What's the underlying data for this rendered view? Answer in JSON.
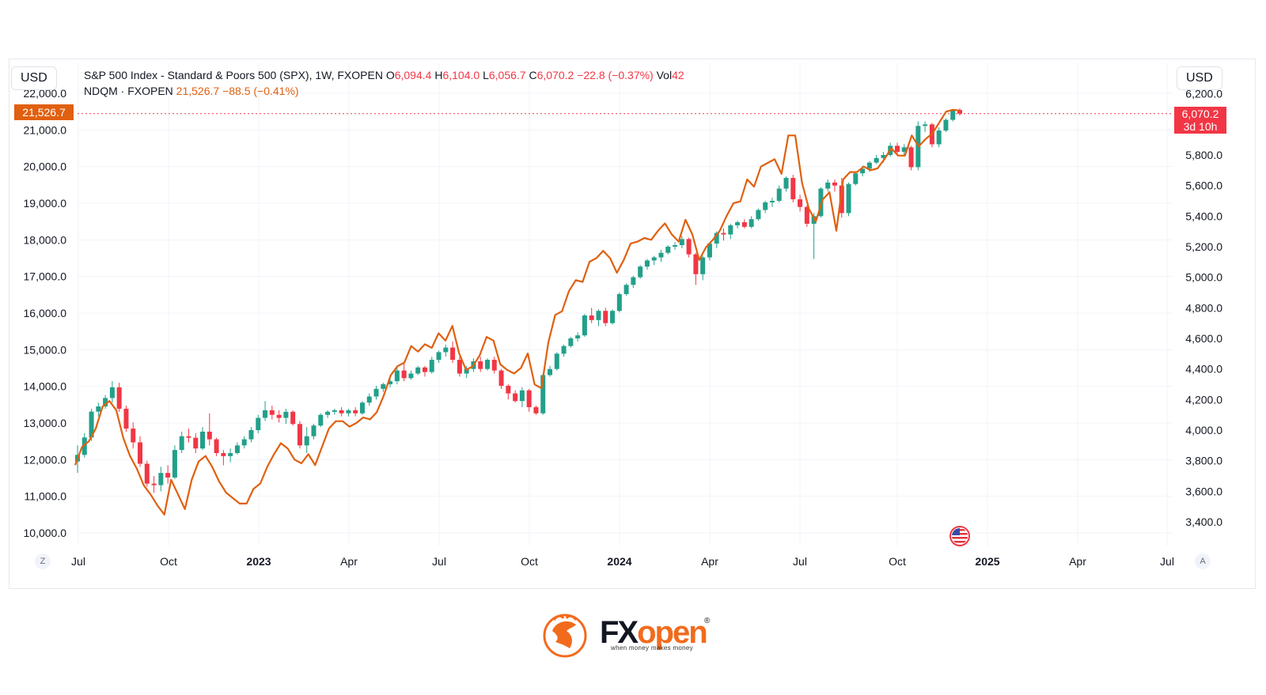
{
  "header": {
    "left_currency": "USD",
    "right_currency": "USD",
    "symbol1_name": "S&P 500 Index - Standard & Poors 500 (SPX), 1W, FXOPEN",
    "o_label": "O",
    "o_value": "6,094.4",
    "h_label": "H",
    "h_value": "6,104.0",
    "l_label": "L",
    "l_value": "6,056.7",
    "c_label": "C",
    "c_value": "6,070.2",
    "change": "−22.8 (−0.37%)",
    "vol_label": "Vol",
    "vol_value": "42",
    "symbol2_name": "NDQM · FXOPEN",
    "symbol2_value": "21,526.7",
    "symbol2_change": "−88.5 (−0.41%)"
  },
  "price_tags": {
    "left": "21,526.7",
    "right_price": "6,070.2",
    "right_countdown": "3d 10h"
  },
  "buttons": {
    "left": "Z",
    "right": "A"
  },
  "brand": {
    "fx": "FX",
    "open": "open",
    "reg": "®",
    "tagline": "when money makes money"
  },
  "chart_data": {
    "type": "candlestick+line",
    "left_axis": {
      "series": "NDQM",
      "ticks": [
        "22,000.0",
        "21,000.0",
        "20,000.0",
        "19,000.0",
        "18,000.0",
        "17,000.0",
        "16,000.0",
        "15,000.0",
        "14,000.0",
        "13,000.0",
        "12,000.0",
        "11,000.0",
        "10,000.0"
      ],
      "range": [
        9840,
        22180
      ]
    },
    "right_axis": {
      "series": "SPX",
      "ticks": [
        "6,200.0",
        "5,800.0",
        "5,600.0",
        "5,400.0",
        "5,200.0",
        "5,000.0",
        "4,800.0",
        "4,600.0",
        "4,400.0",
        "4,200.0",
        "4,000.0",
        "3,800.0",
        "3,600.0",
        "3,400.0"
      ],
      "range": [
        3300,
        6200
      ]
    },
    "x_axis": {
      "ticks": [
        {
          "label": "Jul",
          "year": false
        },
        {
          "label": "Oct",
          "year": false
        },
        {
          "label": "2023",
          "year": true
        },
        {
          "label": "Apr",
          "year": false
        },
        {
          "label": "Jul",
          "year": false
        },
        {
          "label": "Oct",
          "year": false
        },
        {
          "label": "2024",
          "year": true
        },
        {
          "label": "Apr",
          "year": false
        },
        {
          "label": "Jul",
          "year": false
        },
        {
          "label": "Oct",
          "year": false
        },
        {
          "label": "2025",
          "year": true
        },
        {
          "label": "Apr",
          "year": false
        },
        {
          "label": "Jul",
          "year": false
        }
      ]
    },
    "colors": {
      "up": "#22a08a",
      "down": "#f23645",
      "line": "#e0600f",
      "grid": "#f0f3fa"
    },
    "ndqm_line": [
      11850,
      12350,
      12500,
      12850,
      13450,
      13600,
      13350,
      12600,
      12100,
      11750,
      11300,
      11050,
      10750,
      10500,
      11450,
      11050,
      10650,
      11450,
      11950,
      12100,
      11800,
      11400,
      11100,
      10950,
      10800,
      10800,
      11200,
      11350,
      11800,
      12150,
      12450,
      12300,
      12000,
      11900,
      12150,
      11850,
      12350,
      12850,
      13050,
      13050,
      12900,
      13000,
      13150,
      13100,
      13300,
      13750,
      14300,
      14550,
      14650,
      15100,
      14950,
      15150,
      15050,
      15450,
      15250,
      15650,
      14900,
      14450,
      14550,
      14850,
      15350,
      15250,
      14600,
      14450,
      14350,
      14500,
      14900,
      14050,
      13950,
      15200,
      15950,
      16050,
      16600,
      16900,
      16850,
      17400,
      17500,
      17700,
      17500,
      17100,
      17450,
      17900,
      17950,
      18050,
      18000,
      18250,
      18450,
      18150,
      17950,
      18550,
      18150,
      17450,
      17800,
      18000,
      18250,
      18650,
      19000,
      19050,
      19650,
      19450,
      20000,
      20100,
      20200,
      19800,
      20850,
      20850,
      19550,
      18850,
      18500,
      19100,
      19300,
      18250,
      19650,
      19850,
      19850,
      20000,
      19900,
      19950,
      20200,
      20500,
      20300,
      20300,
      20850,
      20550,
      20750,
      20900,
      21200,
      21500,
      21550,
      21526.7
    ],
    "spx_candles": [
      [
        3795,
        3900,
        3720,
        3838
      ],
      [
        3838,
        3980,
        3820,
        3952
      ],
      [
        3952,
        4140,
        3930,
        4121
      ],
      [
        4121,
        4180,
        4090,
        4155
      ],
      [
        4155,
        4230,
        4140,
        4210
      ],
      [
        4210,
        4320,
        4180,
        4280
      ],
      [
        4280,
        4310,
        4120,
        4140
      ],
      [
        4140,
        4160,
        3990,
        4010
      ],
      [
        4010,
        4050,
        3880,
        3920
      ],
      [
        3920,
        3960,
        3760,
        3780
      ],
      [
        3780,
        3800,
        3630,
        3650
      ],
      [
        3650,
        3700,
        3590,
        3640
      ],
      [
        3640,
        3760,
        3600,
        3720
      ],
      [
        3720,
        3770,
        3650,
        3690
      ],
      [
        3690,
        3900,
        3680,
        3870
      ],
      [
        3870,
        3990,
        3850,
        3960
      ],
      [
        3960,
        4010,
        3920,
        3950
      ],
      [
        3950,
        3980,
        3850,
        3880
      ],
      [
        3880,
        4020,
        3870,
        3990
      ],
      [
        3990,
        4110,
        3900,
        3940
      ],
      [
        3940,
        3950,
        3830,
        3850
      ],
      [
        3850,
        3870,
        3770,
        3830
      ],
      [
        3830,
        3880,
        3790,
        3850
      ],
      [
        3850,
        3920,
        3840,
        3900
      ],
      [
        3900,
        3960,
        3880,
        3940
      ],
      [
        3940,
        4020,
        3920,
        4000
      ],
      [
        4000,
        4100,
        3980,
        4080
      ],
      [
        4080,
        4190,
        4060,
        4130
      ],
      [
        4130,
        4160,
        4070,
        4100
      ],
      [
        4100,
        4130,
        4050,
        4080
      ],
      [
        4080,
        4140,
        4040,
        4120
      ],
      [
        4120,
        4130,
        4030,
        4040
      ],
      [
        4040,
        4060,
        3880,
        3900
      ],
      [
        3900,
        4020,
        3850,
        3960
      ],
      [
        3960,
        4040,
        3940,
        4030
      ],
      [
        4030,
        4110,
        4020,
        4100
      ],
      [
        4100,
        4130,
        4080,
        4120
      ],
      [
        4120,
        4140,
        4100,
        4130
      ],
      [
        4130,
        4150,
        4090,
        4110
      ],
      [
        4110,
        4140,
        4090,
        4130
      ],
      [
        4130,
        4150,
        4090,
        4110
      ],
      [
        4110,
        4190,
        4100,
        4180
      ],
      [
        4180,
        4240,
        4160,
        4220
      ],
      [
        4220,
        4290,
        4200,
        4270
      ],
      [
        4270,
        4310,
        4250,
        4300
      ],
      [
        4300,
        4340,
        4280,
        4320
      ],
      [
        4320,
        4410,
        4300,
        4390
      ],
      [
        4390,
        4440,
        4320,
        4340
      ],
      [
        4340,
        4390,
        4330,
        4370
      ],
      [
        4370,
        4420,
        4360,
        4410
      ],
      [
        4410,
        4420,
        4350,
        4380
      ],
      [
        4380,
        4480,
        4370,
        4460
      ],
      [
        4460,
        4520,
        4440,
        4510
      ],
      [
        4510,
        4560,
        4480,
        4540
      ],
      [
        4540,
        4580,
        4440,
        4460
      ],
      [
        4460,
        4480,
        4350,
        4370
      ],
      [
        4370,
        4420,
        4340,
        4400
      ],
      [
        4400,
        4470,
        4380,
        4450
      ],
      [
        4450,
        4480,
        4380,
        4400
      ],
      [
        4400,
        4470,
        4390,
        4460
      ],
      [
        4460,
        4480,
        4370,
        4390
      ],
      [
        4390,
        4400,
        4270,
        4290
      ],
      [
        4290,
        4300,
        4200,
        4240
      ],
      [
        4240,
        4260,
        4180,
        4190
      ],
      [
        4190,
        4280,
        4150,
        4260
      ],
      [
        4260,
        4270,
        4120,
        4150
      ],
      [
        4150,
        4160,
        4100,
        4110
      ],
      [
        4110,
        4370,
        4100,
        4360
      ],
      [
        4360,
        4420,
        4350,
        4400
      ],
      [
        4400,
        4510,
        4390,
        4500
      ],
      [
        4500,
        4560,
        4480,
        4550
      ],
      [
        4550,
        4610,
        4540,
        4600
      ],
      [
        4600,
        4640,
        4580,
        4620
      ],
      [
        4620,
        4760,
        4610,
        4750
      ],
      [
        4750,
        4800,
        4700,
        4720
      ],
      [
        4720,
        4790,
        4680,
        4780
      ],
      [
        4780,
        4800,
        4680,
        4700
      ],
      [
        4700,
        4790,
        4690,
        4780
      ],
      [
        4780,
        4900,
        4770,
        4890
      ],
      [
        4890,
        4960,
        4880,
        4950
      ],
      [
        4950,
        5010,
        4930,
        5000
      ],
      [
        5000,
        5080,
        4990,
        5070
      ],
      [
        5070,
        5120,
        5050,
        5110
      ],
      [
        5110,
        5140,
        5080,
        5130
      ],
      [
        5130,
        5180,
        5100,
        5160
      ],
      [
        5160,
        5210,
        5150,
        5200
      ],
      [
        5200,
        5230,
        5180,
        5210
      ],
      [
        5210,
        5270,
        5190,
        5250
      ],
      [
        5250,
        5260,
        5130,
        5150
      ],
      [
        5150,
        5160,
        4950,
        5020
      ],
      [
        5020,
        5140,
        4980,
        5130
      ],
      [
        5130,
        5230,
        5110,
        5220
      ],
      [
        5220,
        5300,
        5190,
        5290
      ],
      [
        5290,
        5320,
        5240,
        5280
      ],
      [
        5280,
        5350,
        5250,
        5340
      ],
      [
        5340,
        5370,
        5320,
        5360
      ],
      [
        5360,
        5380,
        5320,
        5330
      ],
      [
        5330,
        5400,
        5320,
        5380
      ],
      [
        5380,
        5450,
        5370,
        5440
      ],
      [
        5440,
        5500,
        5420,
        5490
      ],
      [
        5490,
        5520,
        5460,
        5500
      ],
      [
        5500,
        5600,
        5490,
        5580
      ],
      [
        5580,
        5660,
        5560,
        5650
      ],
      [
        5650,
        5670,
        5490,
        5510
      ],
      [
        5510,
        5540,
        5430,
        5460
      ],
      [
        5460,
        5470,
        5330,
        5350
      ],
      [
        5350,
        5420,
        5120,
        5400
      ],
      [
        5400,
        5590,
        5390,
        5580
      ],
      [
        5580,
        5640,
        5560,
        5620
      ],
      [
        5620,
        5640,
        5560,
        5600
      ],
      [
        5600,
        5650,
        5390,
        5420
      ],
      [
        5420,
        5620,
        5400,
        5610
      ],
      [
        5610,
        5690,
        5600,
        5680
      ],
      [
        5680,
        5730,
        5660,
        5710
      ],
      [
        5710,
        5760,
        5690,
        5750
      ],
      [
        5750,
        5800,
        5740,
        5780
      ],
      [
        5780,
        5820,
        5750,
        5800
      ],
      [
        5800,
        5880,
        5790,
        5860
      ],
      [
        5860,
        5880,
        5800,
        5820
      ],
      [
        5820,
        5870,
        5790,
        5850
      ],
      [
        5850,
        5860,
        5700,
        5720
      ],
      [
        5720,
        6020,
        5700,
        5990
      ],
      [
        5990,
        6020,
        5950,
        6000
      ],
      [
        6000,
        6010,
        5850,
        5870
      ],
      [
        5870,
        5980,
        5850,
        5960
      ],
      [
        5960,
        6040,
        5950,
        6030
      ],
      [
        6030,
        6100,
        6020,
        6090
      ],
      [
        6094.4,
        6104,
        6056.7,
        6070.2
      ]
    ]
  }
}
